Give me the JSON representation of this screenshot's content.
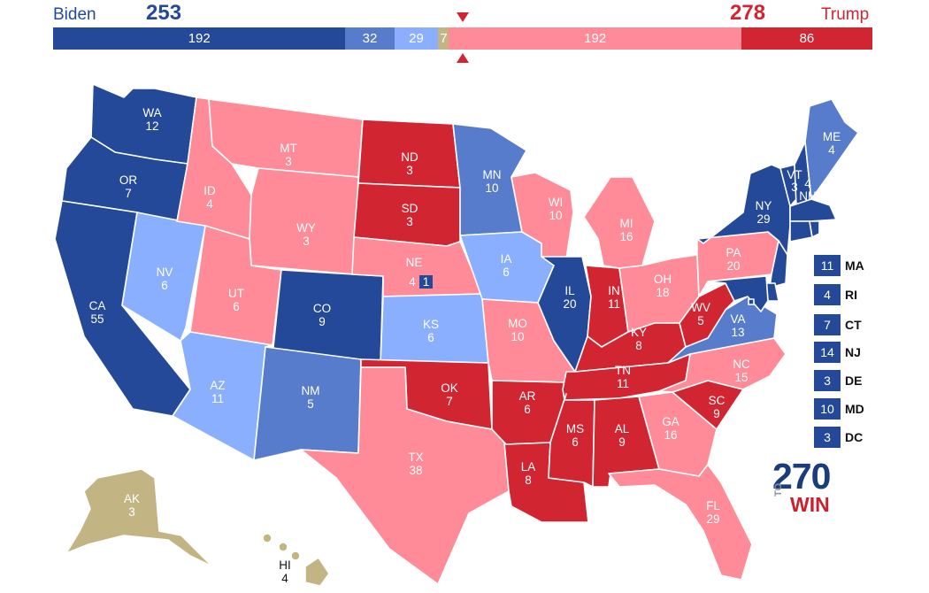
{
  "header": {
    "biden_name": "Biden",
    "biden_total": "253",
    "trump_total": "278",
    "trump_name": "Trump"
  },
  "bar": [
    {
      "label": "192",
      "value": 192,
      "color": "#244999"
    },
    {
      "label": "32",
      "value": 32,
      "color": "#577ccc"
    },
    {
      "label": "29",
      "value": 29,
      "color": "#8aafff"
    },
    {
      "label": "7",
      "value": 7,
      "color": "#c2b583"
    },
    {
      "label": "192",
      "value": 192,
      "color": "#ff8b98"
    },
    {
      "label": "86",
      "value": 86,
      "color": "#d22532"
    }
  ],
  "colors": {
    "safe_dem": "#244999",
    "likely_dem": "#577ccc",
    "lean_dem": "#8aafff",
    "tossup": "#c2b583",
    "lean_rep": "#ff8b98",
    "safe_rep": "#d22532"
  },
  "states": {
    "WA": {
      "abbr": "WA",
      "ev": "12"
    },
    "OR": {
      "abbr": "OR",
      "ev": "7"
    },
    "CA": {
      "abbr": "CA",
      "ev": "55"
    },
    "NV": {
      "abbr": "NV",
      "ev": "6"
    },
    "ID": {
      "abbr": "ID",
      "ev": "4"
    },
    "MT": {
      "abbr": "MT",
      "ev": "3"
    },
    "WY": {
      "abbr": "WY",
      "ev": "3"
    },
    "UT": {
      "abbr": "UT",
      "ev": "6"
    },
    "CO": {
      "abbr": "CO",
      "ev": "9"
    },
    "AZ": {
      "abbr": "AZ",
      "ev": "11"
    },
    "NM": {
      "abbr": "NM",
      "ev": "5"
    },
    "ND": {
      "abbr": "ND",
      "ev": "3"
    },
    "SD": {
      "abbr": "SD",
      "ev": "3"
    },
    "NE": {
      "abbr": "NE",
      "ev": "4",
      "ev2": "1"
    },
    "KS": {
      "abbr": "KS",
      "ev": "6"
    },
    "OK": {
      "abbr": "OK",
      "ev": "7"
    },
    "TX": {
      "abbr": "TX",
      "ev": "38"
    },
    "MN": {
      "abbr": "MN",
      "ev": "10"
    },
    "IA": {
      "abbr": "IA",
      "ev": "6"
    },
    "MO": {
      "abbr": "MO",
      "ev": "10"
    },
    "AR": {
      "abbr": "AR",
      "ev": "6"
    },
    "LA": {
      "abbr": "LA",
      "ev": "8"
    },
    "WI": {
      "abbr": "WI",
      "ev": "10"
    },
    "IL": {
      "abbr": "IL",
      "ev": "20"
    },
    "MI": {
      "abbr": "MI",
      "ev": "16"
    },
    "IN": {
      "abbr": "IN",
      "ev": "11"
    },
    "OH": {
      "abbr": "OH",
      "ev": "18"
    },
    "KY": {
      "abbr": "KY",
      "ev": "8"
    },
    "TN": {
      "abbr": "TN",
      "ev": "11"
    },
    "MS": {
      "abbr": "MS",
      "ev": "6"
    },
    "AL": {
      "abbr": "AL",
      "ev": "9"
    },
    "GA": {
      "abbr": "GA",
      "ev": "16"
    },
    "FL": {
      "abbr": "FL",
      "ev": "29"
    },
    "SC": {
      "abbr": "SC",
      "ev": "9"
    },
    "NC": {
      "abbr": "NC",
      "ev": "15"
    },
    "VA": {
      "abbr": "VA",
      "ev": "13"
    },
    "WV": {
      "abbr": "WV",
      "ev": "5"
    },
    "PA": {
      "abbr": "PA",
      "ev": "20"
    },
    "NY": {
      "abbr": "NY",
      "ev": "29"
    },
    "VT": {
      "abbr": "VT",
      "ev": "3"
    },
    "NH": {
      "abbr": "NH",
      "ev": "4"
    },
    "ME": {
      "abbr": "ME",
      "ev": "4"
    },
    "AK": {
      "abbr": "AK",
      "ev": "3"
    },
    "HI": {
      "abbr": "HI",
      "ev": "4"
    }
  },
  "small_states": [
    {
      "abbr": "MA",
      "ev": "11"
    },
    {
      "abbr": "RI",
      "ev": "4"
    },
    {
      "abbr": "CT",
      "ev": "7"
    },
    {
      "abbr": "NJ",
      "ev": "14"
    },
    {
      "abbr": "DE",
      "ev": "3"
    },
    {
      "abbr": "MD",
      "ev": "10"
    },
    {
      "abbr": "DC",
      "ev": "3"
    }
  ],
  "logo": {
    "number": "270",
    "to": "TO",
    "win": "WIN"
  }
}
